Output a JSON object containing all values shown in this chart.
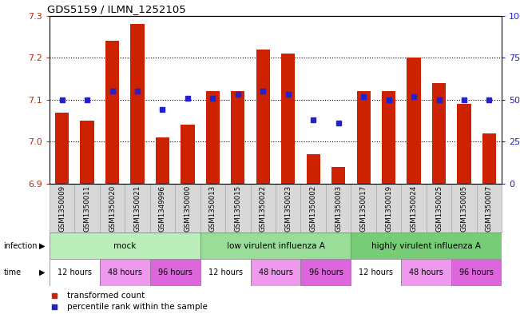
{
  "title": "GDS5159 / ILMN_1252105",
  "samples": [
    "GSM1350009",
    "GSM1350011",
    "GSM1350020",
    "GSM1350021",
    "GSM1349996",
    "GSM1350000",
    "GSM1350013",
    "GSM1350015",
    "GSM1350022",
    "GSM1350023",
    "GSM1350002",
    "GSM1350003",
    "GSM1350017",
    "GSM1350019",
    "GSM1350024",
    "GSM1350025",
    "GSM1350005",
    "GSM1350007"
  ],
  "bar_values": [
    7.07,
    7.05,
    7.24,
    7.28,
    7.01,
    7.04,
    7.12,
    7.12,
    7.22,
    7.21,
    6.97,
    6.94,
    7.12,
    7.12,
    7.2,
    7.14,
    7.09,
    7.02
  ],
  "dot_percentiles": [
    50,
    50,
    55,
    55,
    44,
    51,
    51,
    53,
    55,
    53,
    38,
    36,
    52,
    50,
    52,
    50,
    50,
    50
  ],
  "ylim": [
    6.9,
    7.3
  ],
  "yticks": [
    6.9,
    7.0,
    7.1,
    7.2,
    7.3
  ],
  "right_yticks": [
    0,
    25,
    50,
    75,
    100
  ],
  "bar_color": "#cc2200",
  "dot_color": "#2222cc",
  "tick_color_left": "#cc2200",
  "tick_color_right": "#2222cc",
  "base_value": 6.9,
  "infection_spans": [
    {
      "label": "mock",
      "start": 0,
      "end": 6,
      "color": "#bbeebb"
    },
    {
      "label": "low virulent influenza A",
      "start": 6,
      "end": 12,
      "color": "#99dd99"
    },
    {
      "label": "highly virulent influenza A",
      "start": 12,
      "end": 18,
      "color": "#77cc77"
    }
  ],
  "time_groups": [
    {
      "label": "12 hours",
      "color": "#ffffff"
    },
    {
      "label": "48 hours",
      "color": "#ee99ee"
    },
    {
      "label": "96 hours",
      "color": "#dd66dd"
    },
    {
      "label": "12 hours",
      "color": "#ffffff"
    },
    {
      "label": "48 hours",
      "color": "#ee99ee"
    },
    {
      "label": "96 hours",
      "color": "#dd66dd"
    },
    {
      "label": "12 hours",
      "color": "#ffffff"
    },
    {
      "label": "48 hours",
      "color": "#ee99ee"
    },
    {
      "label": "96 hours",
      "color": "#dd66dd"
    }
  ],
  "cell_bg": "#d8d8d8",
  "cell_border": "#aaaaaa"
}
